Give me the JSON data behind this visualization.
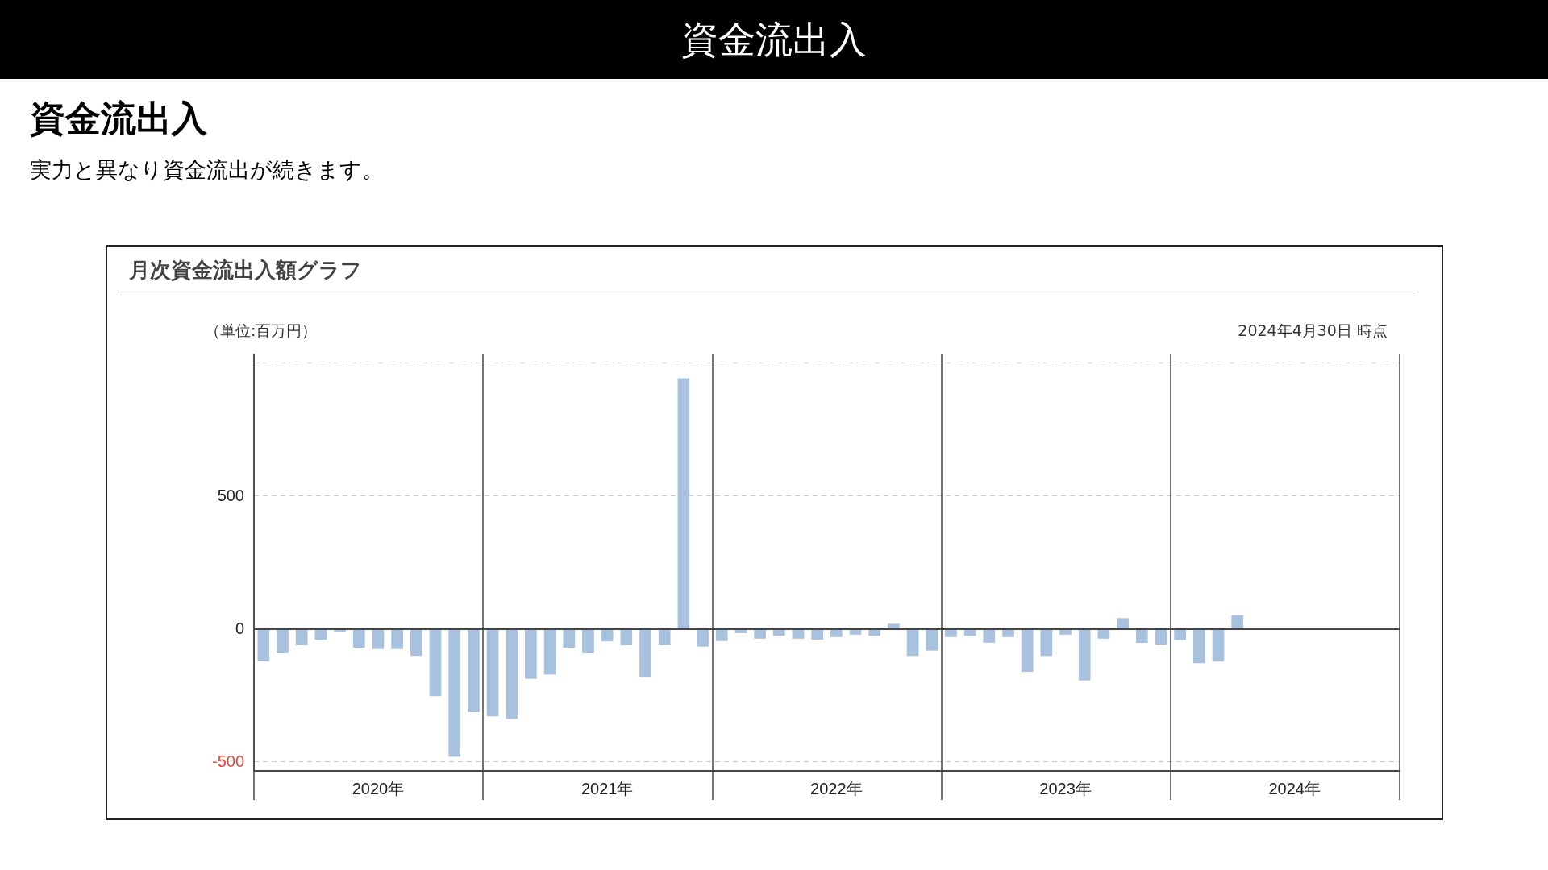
{
  "chart_data": {
    "type": "bar",
    "title": "資金流出入",
    "subtitle": "実力と異なり資金流出が続きます。",
    "ylabel": "（単位:百万円）",
    "annotations": [
      "月次資金流出入額グラフ",
      "2024年4月30日 時点"
    ],
    "categories": [
      null,
      null,
      null,
      null,
      null,
      null,
      "2020年",
      null,
      null,
      null,
      null,
      null,
      null,
      null,
      null,
      null,
      null,
      null,
      "2021年",
      null,
      null,
      null,
      null,
      null,
      null,
      null,
      null,
      null,
      null,
      null,
      "2022年",
      null,
      null,
      null,
      null,
      null,
      null,
      null,
      null,
      null,
      null,
      null,
      "2023年",
      null,
      null,
      null,
      null,
      null,
      null,
      null,
      null,
      null,
      null,
      null,
      "2024年",
      null,
      null,
      null,
      null,
      null
    ],
    "values": [
      -123,
      -93,
      -63,
      -42,
      -11,
      -72,
      -77,
      -77,
      -103,
      -254,
      -482,
      -314,
      -330,
      -340,
      -189,
      -173,
      -72,
      -93,
      -48,
      -63,
      -183,
      -63,
      941,
      -68,
      -47,
      -17,
      -38,
      -27,
      -38,
      -42,
      -32,
      -23,
      -27,
      18,
      -103,
      -83,
      -32,
      -27,
      -53,
      -32,
      -163,
      -103,
      -23,
      -195,
      -38,
      39,
      -54,
      -63,
      -43,
      -130,
      -124,
      50,
      null,
      null,
      null,
      null,
      null,
      null,
      null,
      null
    ],
    "color": "#a8c1de",
    "ylim": [
      -535,
      1030
    ],
    "yticks": [
      -500,
      0,
      500,
      {
        "value": 1000,
        "label": null
      }
    ],
    "grid": "y",
    "ref_lines": [
      {
        "axis": "y",
        "value": 0,
        "color": "#444444"
      }
    ]
  }
}
